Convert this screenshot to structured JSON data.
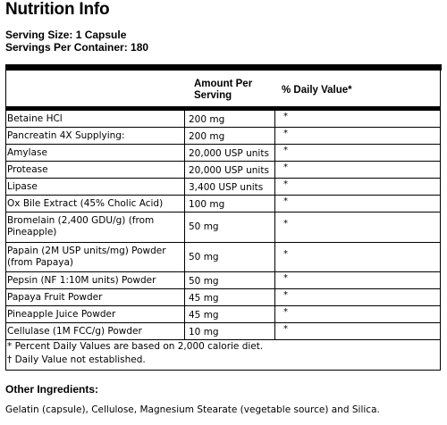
{
  "title": "Nutrition Info",
  "serving_size": "Serving Size: 1 Capsule",
  "servings_per_container": "Servings Per Container: 180",
  "header": {
    "amount": "Amount Per Serving",
    "daily_value": "% Daily Value*"
  },
  "rows": [
    {
      "name": "Betaine HCl",
      "amount": "200 mg",
      "dv": "*"
    },
    {
      "name": "Pancreatin 4X Supplying:",
      "amount": "200 mg",
      "dv": "*"
    },
    {
      "name": "Amylase",
      "amount": "20,000 USP units",
      "dv": "*"
    },
    {
      "name": "Protease",
      "amount": "20,000 USP units",
      "dv": "*"
    },
    {
      "name": "Lipase",
      "amount": "3,400 USP units",
      "dv": "*"
    },
    {
      "name": "Ox Bile Extract (45% Cholic Acid)",
      "amount": "100 mg",
      "dv": "*"
    },
    {
      "name": "Bromelain (2,400 GDU/g) (from Pineapple)",
      "amount": "50 mg",
      "dv": "*"
    },
    {
      "name": "Papain (2M USP units/mg) Powder (from Papaya)",
      "amount": "50 mg",
      "dv": "*"
    },
    {
      "name": "Pepsin (NF 1:10M units) Powder",
      "amount": "50 mg",
      "dv": "*"
    },
    {
      "name": "Papaya Fruit Powder",
      "amount": "45 mg",
      "dv": "*"
    },
    {
      "name": "Pineapple Juice Powder",
      "amount": "45 mg",
      "dv": "*"
    },
    {
      "name": "Cellulase (1M FCC/g) Powder",
      "amount": "10 mg",
      "dv": "*"
    }
  ],
  "footnotes": [
    "* Percent Daily Values are based on 2,000 calorie diet.",
    "† Daily Value not established."
  ],
  "other_ingredients": {
    "title": "Other Ingredients:",
    "text": "Gelatin (capsule), Cellulose, Magnesium Stearate (vegetable source) and Silica."
  }
}
